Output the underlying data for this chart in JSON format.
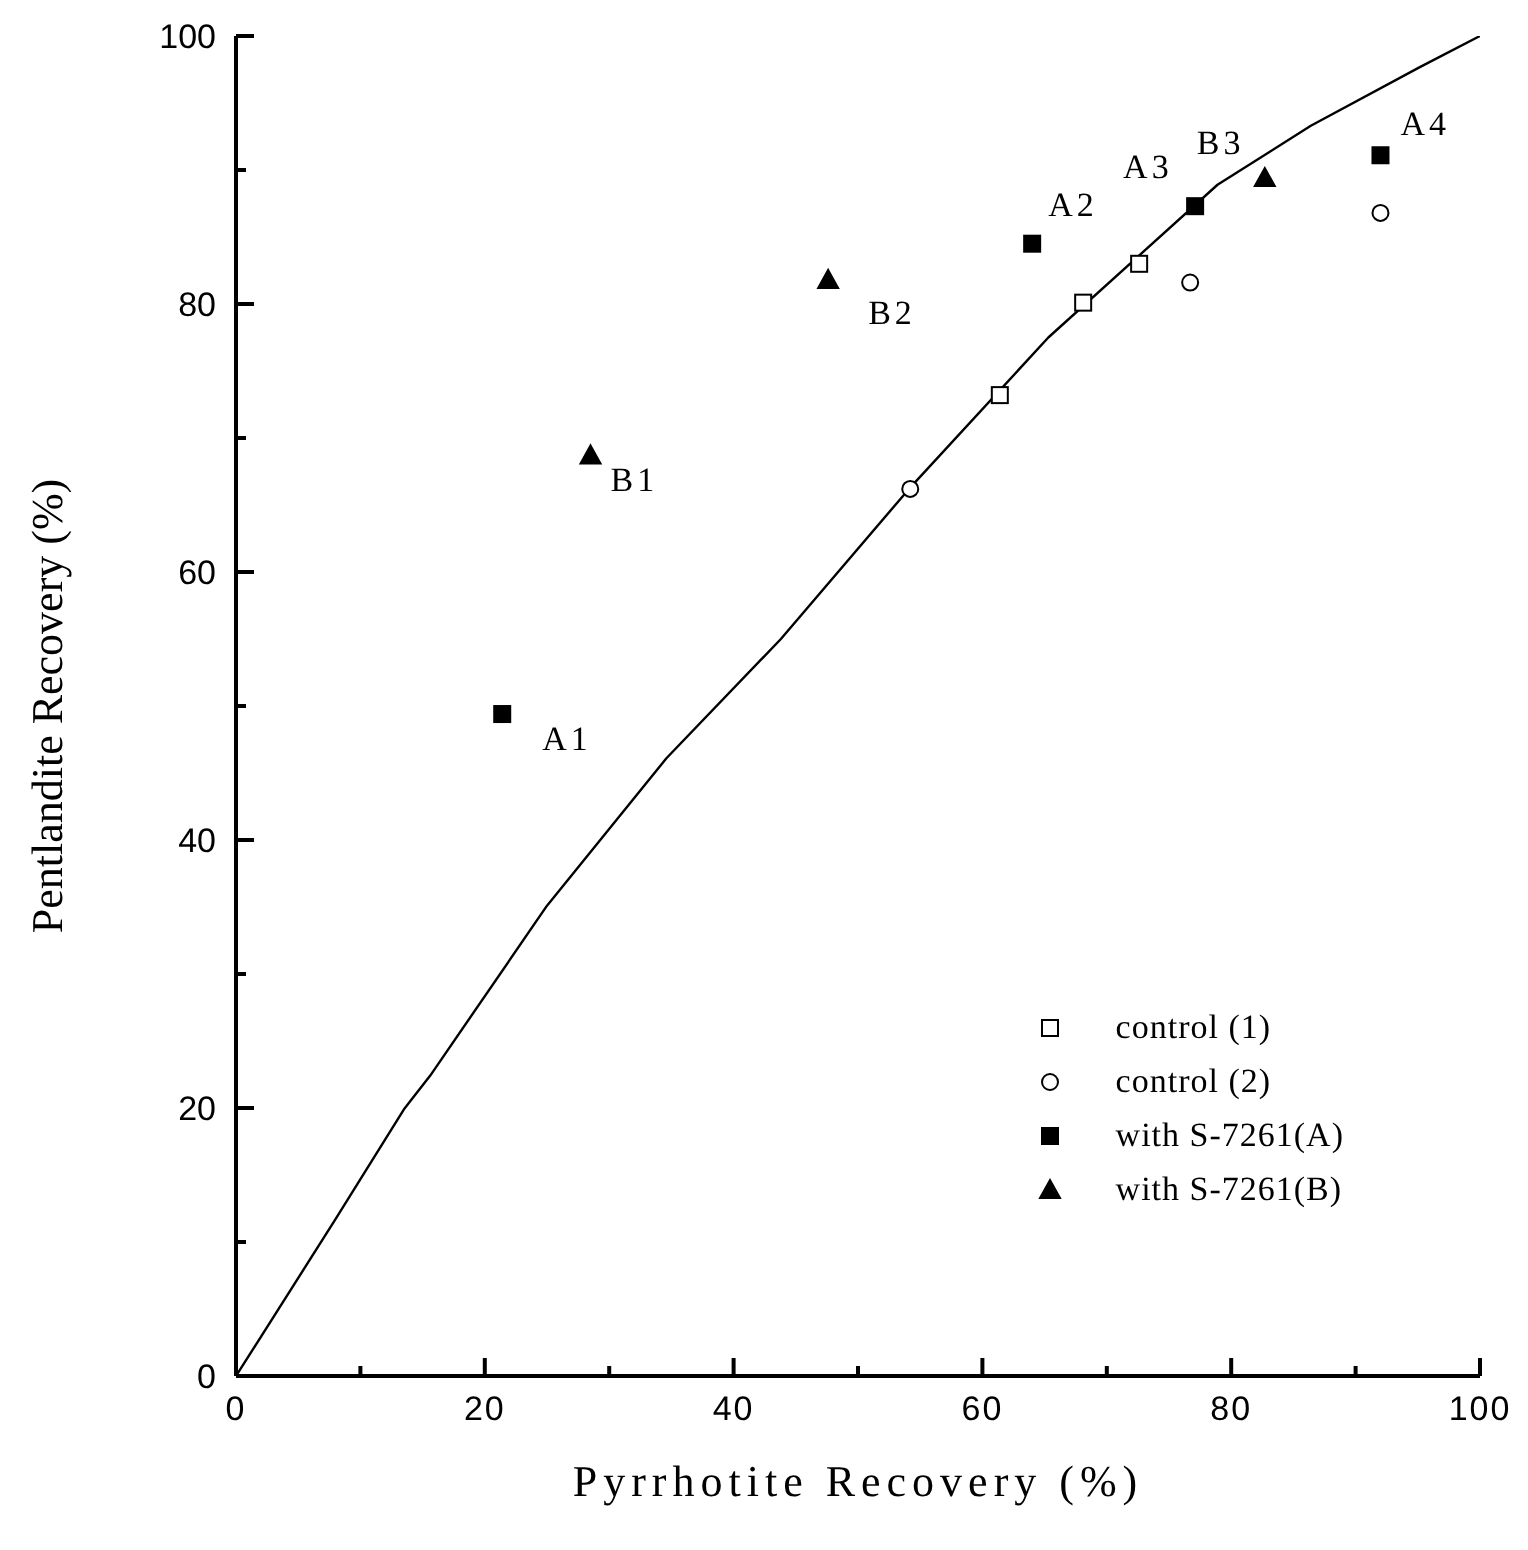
{
  "chart_data": {
    "type": "scatter",
    "xlabel": "Pyrrhotite Recovery (%)",
    "ylabel": "Pentlandite Recovery (%)",
    "xlim": [
      0,
      100
    ],
    "ylim": [
      0,
      100
    ],
    "xticks": [
      0,
      {
        "value": 10,
        "label": null
      },
      20,
      {
        "value": 30,
        "label": null
      },
      40,
      {
        "value": 50,
        "label": null
      },
      60,
      {
        "value": 70,
        "label": null
      },
      80,
      {
        "value": 90,
        "label": null
      },
      100
    ],
    "yticks": [
      0,
      {
        "value": 10,
        "label": null
      },
      20,
      {
        "value": 30,
        "label": null
      },
      40,
      {
        "value": 50,
        "label": null
      },
      60,
      {
        "value": 70,
        "label": null
      },
      80,
      {
        "value": 90,
        "label": null
      },
      100
    ],
    "grid": false,
    "legend": "bottom right",
    "series": [
      {
        "type": "line",
        "color": "#000000",
        "marker": "none",
        "line_style": "solid",
        "x": [
          0,
          8,
          13.5,
          15.6,
          25,
          34.6,
          43.8,
          54.1,
          65.3,
          78.9,
          86.4,
          95.2,
          100
        ],
        "values": [
          0,
          11.7,
          19.9,
          22.4,
          35.1,
          46.1,
          55,
          66.2,
          77.5,
          88.9,
          93.3,
          97.7,
          100
        ]
      },
      {
        "name": "control (1)",
        "color": "#ffffff",
        "marker": "square",
        "x": [
          61.4,
          68.1,
          72.6
        ],
        "values": [
          73.2,
          80.1,
          83
        ]
      },
      {
        "name": "control (2)",
        "color": "#ffffff",
        "marker": "circle",
        "x": [
          54.2,
          76.7,
          92
        ],
        "values": [
          66.2,
          81.6,
          86.8
        ]
      },
      {
        "name": "with S-7261(A)",
        "color": "#000000",
        "marker": "square",
        "x": [
          21.4,
          64,
          77.1,
          92
        ],
        "values": [
          49.4,
          84.5,
          87.3,
          91.1
        ]
      },
      {
        "name": "with S-7261(B)",
        "color": "#000000",
        "marker": "triangle",
        "x": [
          28.5,
          47.6,
          82.7
        ],
        "values": [
          68.7,
          81.8,
          89.4
        ]
      }
    ],
    "annotations": [
      {
        "text": "A1",
        "x": 21.4,
        "y": 49.4
      },
      {
        "text": "A2",
        "x": 64,
        "y": 84.5
      },
      {
        "text": "A3",
        "x": 77.1,
        "y": 87.3
      },
      {
        "text": "A4",
        "x": 92,
        "y": 91.1
      },
      {
        "text": "B1",
        "x": 28.5,
        "y": 68.7
      },
      {
        "text": "B2",
        "x": 47.6,
        "y": 81.8
      },
      {
        "text": "B3",
        "x": 82.7,
        "y": 89.4
      }
    ]
  }
}
